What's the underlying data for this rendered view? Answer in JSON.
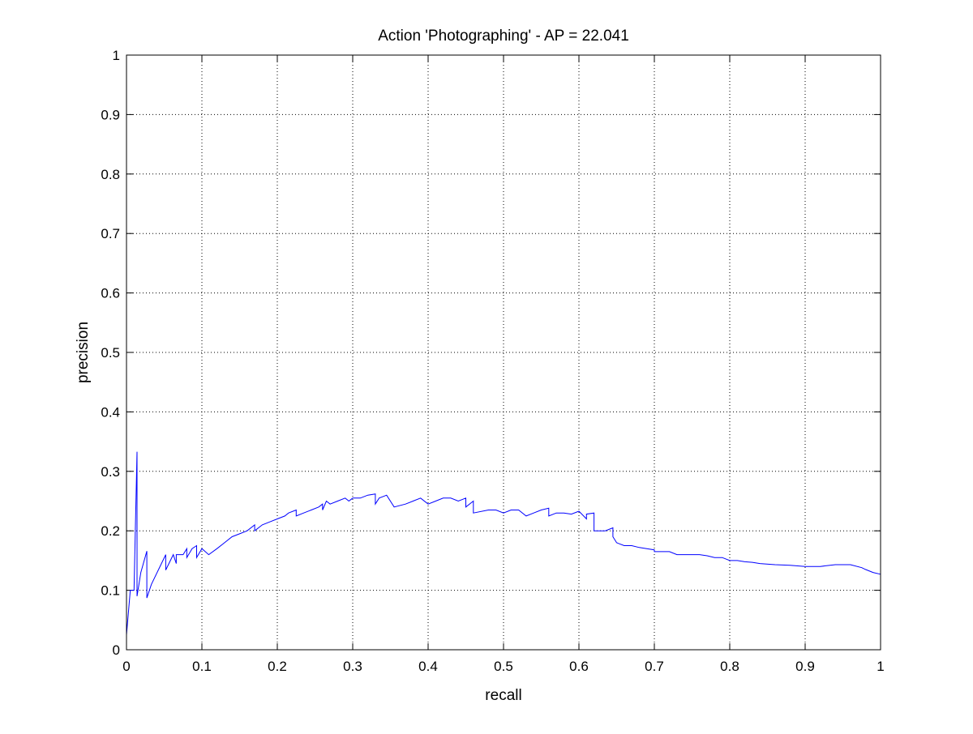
{
  "chart_data": {
    "type": "line",
    "title": "Action 'Photographing' - AP = 22.041",
    "xlabel": "recall",
    "ylabel": "precision",
    "xlim": [
      0,
      1
    ],
    "ylim": [
      0,
      1
    ],
    "xticks": [
      0,
      0.1,
      0.2,
      0.3,
      0.4,
      0.5,
      0.6,
      0.7,
      0.8,
      0.9,
      1
    ],
    "xtick_labels": [
      "0",
      "0.1",
      "0.2",
      "0.3",
      "0.4",
      "0.5",
      "0.6",
      "0.7",
      "0.8",
      "0.9",
      "1"
    ],
    "yticks": [
      0,
      0.1,
      0.2,
      0.3,
      0.4,
      0.5,
      0.6,
      0.7,
      0.8,
      0.9,
      1
    ],
    "ytick_labels": [
      "0",
      "0.1",
      "0.2",
      "0.3",
      "0.4",
      "0.5",
      "0.6",
      "0.7",
      "0.8",
      "0.9",
      "1"
    ],
    "grid": true,
    "line_color": "#0000ff",
    "series": [
      {
        "x": [
          0,
          0.005,
          0.005,
          0.01,
          0.014,
          0.014,
          0.019,
          0.027,
          0.027,
          0.033,
          0.052,
          0.052,
          0.062,
          0.066,
          0.066,
          0.075,
          0.08,
          0.08,
          0.087,
          0.093,
          0.093,
          0.1,
          0.109,
          0.109,
          0.12,
          0.13,
          0.14,
          0.15,
          0.16,
          0.17,
          0.17,
          0.18,
          0.19,
          0.19,
          0.2,
          0.21,
          0.215,
          0.225,
          0.225,
          0.235,
          0.245,
          0.255,
          0.26,
          0.26,
          0.265,
          0.27,
          0.28,
          0.29,
          0.295,
          0.3,
          0.31,
          0.32,
          0.33,
          0.33,
          0.335,
          0.345,
          0.355,
          0.355,
          0.37,
          0.38,
          0.39,
          0.4,
          0.41,
          0.42,
          0.43,
          0.44,
          0.45,
          0.45,
          0.46,
          0.46,
          0.48,
          0.49,
          0.5,
          0.51,
          0.52,
          0.53,
          0.54,
          0.55,
          0.56,
          0.56,
          0.57,
          0.58,
          0.59,
          0.6,
          0.61,
          0.61,
          0.62,
          0.62,
          0.635,
          0.645,
          0.645,
          0.65,
          0.66,
          0.67,
          0.68,
          0.69,
          0.7,
          0.7,
          0.72,
          0.73,
          0.74,
          0.76,
          0.77,
          0.78,
          0.79,
          0.8,
          0.81,
          0.82,
          0.83,
          0.84,
          0.86,
          0.88,
          0.9,
          0.92,
          0.94,
          0.96,
          0.975,
          0.98,
          0.99,
          1.0
        ],
        "y": [
          0.025,
          0.1,
          0.1,
          0.1,
          0.333,
          0.09,
          0.13,
          0.166,
          0.087,
          0.11,
          0.16,
          0.134,
          0.16,
          0.145,
          0.16,
          0.16,
          0.17,
          0.155,
          0.17,
          0.175,
          0.155,
          0.17,
          0.16,
          0.16,
          0.17,
          0.18,
          0.19,
          0.195,
          0.2,
          0.21,
          0.2,
          0.21,
          0.215,
          0.215,
          0.22,
          0.225,
          0.23,
          0.235,
          0.225,
          0.23,
          0.235,
          0.24,
          0.245,
          0.235,
          0.25,
          0.245,
          0.25,
          0.255,
          0.25,
          0.255,
          0.255,
          0.26,
          0.262,
          0.245,
          0.255,
          0.26,
          0.24,
          0.24,
          0.245,
          0.25,
          0.255,
          0.245,
          0.25,
          0.255,
          0.255,
          0.25,
          0.255,
          0.24,
          0.25,
          0.23,
          0.235,
          0.235,
          0.23,
          0.235,
          0.235,
          0.225,
          0.23,
          0.235,
          0.238,
          0.225,
          0.23,
          0.23,
          0.228,
          0.233,
          0.22,
          0.228,
          0.23,
          0.2,
          0.2,
          0.205,
          0.19,
          0.18,
          0.175,
          0.175,
          0.172,
          0.17,
          0.168,
          0.165,
          0.165,
          0.16,
          0.16,
          0.16,
          0.158,
          0.155,
          0.155,
          0.15,
          0.15,
          0.148,
          0.147,
          0.145,
          0.143,
          0.142,
          0.14,
          0.14,
          0.143,
          0.143,
          0.138,
          0.135,
          0.13,
          0.127
        ]
      }
    ]
  }
}
